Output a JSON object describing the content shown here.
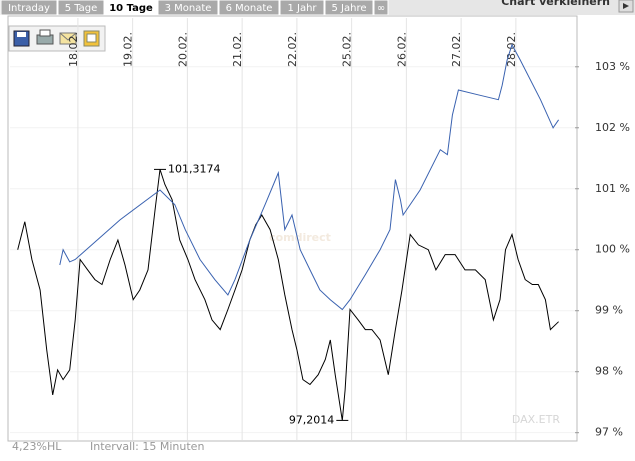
{
  "ui": {
    "tabs": [
      "Intraday",
      "5 Tage",
      "10 Tage",
      "3 Monate",
      "6 Monate",
      "1 Jahr",
      "5 Jahre",
      "∞"
    ],
    "active_tab": 2,
    "resize_button": "Chart verkleinern"
  },
  "chart_data": {
    "type": "line",
    "watermark": "comdirect",
    "instrument": "DAX.ETR",
    "footer_left": "4,23%HL",
    "footer_right": "Intervall: 15 Minuten",
    "xlim": [
      -1.24,
      9.08
    ],
    "xticks": [
      {
        "value": 0,
        "label": "18.02."
      },
      {
        "value": 1,
        "label": "19.02."
      },
      {
        "value": 2,
        "label": "20.02."
      },
      {
        "value": 3,
        "label": "21.02."
      },
      {
        "value": 4,
        "label": "22.02."
      },
      {
        "value": 5,
        "label": "25.02."
      },
      {
        "value": 6,
        "label": "26.02."
      },
      {
        "value": 7,
        "label": "27.02."
      },
      {
        "value": 8,
        "label": "28.02."
      }
    ],
    "ylim": [
      96.88,
      103.8
    ],
    "yticks": [
      {
        "value": 97,
        "label": "97 %"
      },
      {
        "value": 98,
        "label": "98 %"
      },
      {
        "value": 99,
        "label": "99 %"
      },
      {
        "value": 100,
        "label": "100 %"
      },
      {
        "value": 101,
        "label": "101 %"
      },
      {
        "value": 102,
        "label": "102 %"
      },
      {
        "value": 103,
        "label": "103 %"
      }
    ],
    "grid": true,
    "series": [
      {
        "color": "#000000",
        "x": [
          -1.1,
          -0.97,
          -0.84,
          -0.69,
          -0.57,
          -0.46,
          -0.37,
          -0.27,
          -0.15,
          -0.05,
          0.04,
          0.18,
          0.31,
          0.44,
          0.59,
          0.73,
          0.86,
          1.01,
          1.13,
          1.28,
          1.41,
          1.5,
          1.59,
          1.72,
          1.86,
          2.01,
          2.14,
          2.32,
          2.45,
          2.6,
          2.74,
          2.87,
          3.0,
          3.14,
          3.25,
          3.36,
          3.51,
          3.66,
          3.78,
          3.91,
          4.0,
          4.11,
          4.24,
          4.39,
          4.52,
          4.61,
          4.7,
          4.83,
          4.88,
          4.97,
          5.12,
          5.25,
          5.37,
          5.52,
          5.67,
          5.8,
          5.92,
          6.07,
          6.22,
          6.4,
          6.54,
          6.71,
          6.89,
          7.07,
          7.26,
          7.44,
          7.59,
          7.71,
          7.81,
          7.93,
          8.04,
          8.17,
          8.3,
          8.41,
          8.54,
          8.63,
          8.78
        ],
        "values": [
          100.0,
          100.46,
          99.84,
          99.34,
          98.36,
          97.62,
          98.03,
          97.87,
          98.03,
          98.85,
          99.84,
          99.67,
          99.51,
          99.43,
          99.84,
          100.16,
          99.75,
          99.18,
          99.34,
          99.67,
          100.66,
          101.3174,
          101.07,
          100.82,
          100.16,
          99.84,
          99.51,
          99.18,
          98.85,
          98.69,
          99.02,
          99.34,
          99.67,
          100.16,
          100.41,
          100.57,
          100.33,
          99.84,
          99.26,
          98.69,
          98.36,
          97.87,
          97.79,
          97.95,
          98.2,
          98.52,
          97.95,
          97.2014,
          97.7,
          99.02,
          98.85,
          98.69,
          98.69,
          98.52,
          97.95,
          98.69,
          99.34,
          100.25,
          100.08,
          100.0,
          99.67,
          99.92,
          99.92,
          99.67,
          99.67,
          99.51,
          98.85,
          99.18,
          100.0,
          100.25,
          99.84,
          99.51,
          99.43,
          99.43,
          99.18,
          98.69,
          98.82
        ]
      },
      {
        "color": "#3a62b0",
        "x": [
          -0.33,
          -0.27,
          -0.15,
          -0.05,
          0.77,
          1.5,
          1.77,
          1.96,
          2.23,
          2.5,
          2.74,
          2.87,
          3.14,
          3.42,
          3.66,
          3.78,
          3.91,
          4.06,
          4.24,
          4.42,
          4.61,
          4.83,
          4.97,
          5.25,
          5.52,
          5.7,
          5.8,
          5.89,
          5.94,
          6.25,
          6.62,
          6.75,
          6.84,
          6.95,
          7.31,
          7.68,
          7.75,
          7.84,
          7.93,
          8.08,
          8.45,
          8.68,
          8.78
        ],
        "values": [
          99.75,
          100.0,
          99.8,
          99.84,
          100.49,
          100.98,
          100.74,
          100.33,
          99.84,
          99.51,
          99.26,
          99.51,
          100.16,
          100.74,
          101.26,
          100.33,
          100.57,
          100.0,
          99.67,
          99.34,
          99.18,
          99.02,
          99.18,
          99.59,
          100.0,
          100.33,
          101.15,
          100.82,
          100.57,
          100.98,
          101.64,
          101.56,
          102.21,
          102.62,
          102.54,
          102.46,
          102.7,
          103.11,
          103.36,
          103.11,
          102.46,
          102.0,
          102.13
        ]
      }
    ],
    "annotations": [
      {
        "x": 1.5,
        "value": 101.3174,
        "label": "101,3174",
        "side": "right"
      },
      {
        "x": 4.83,
        "value": 97.2014,
        "label": "97,2014",
        "side": "left"
      }
    ]
  }
}
